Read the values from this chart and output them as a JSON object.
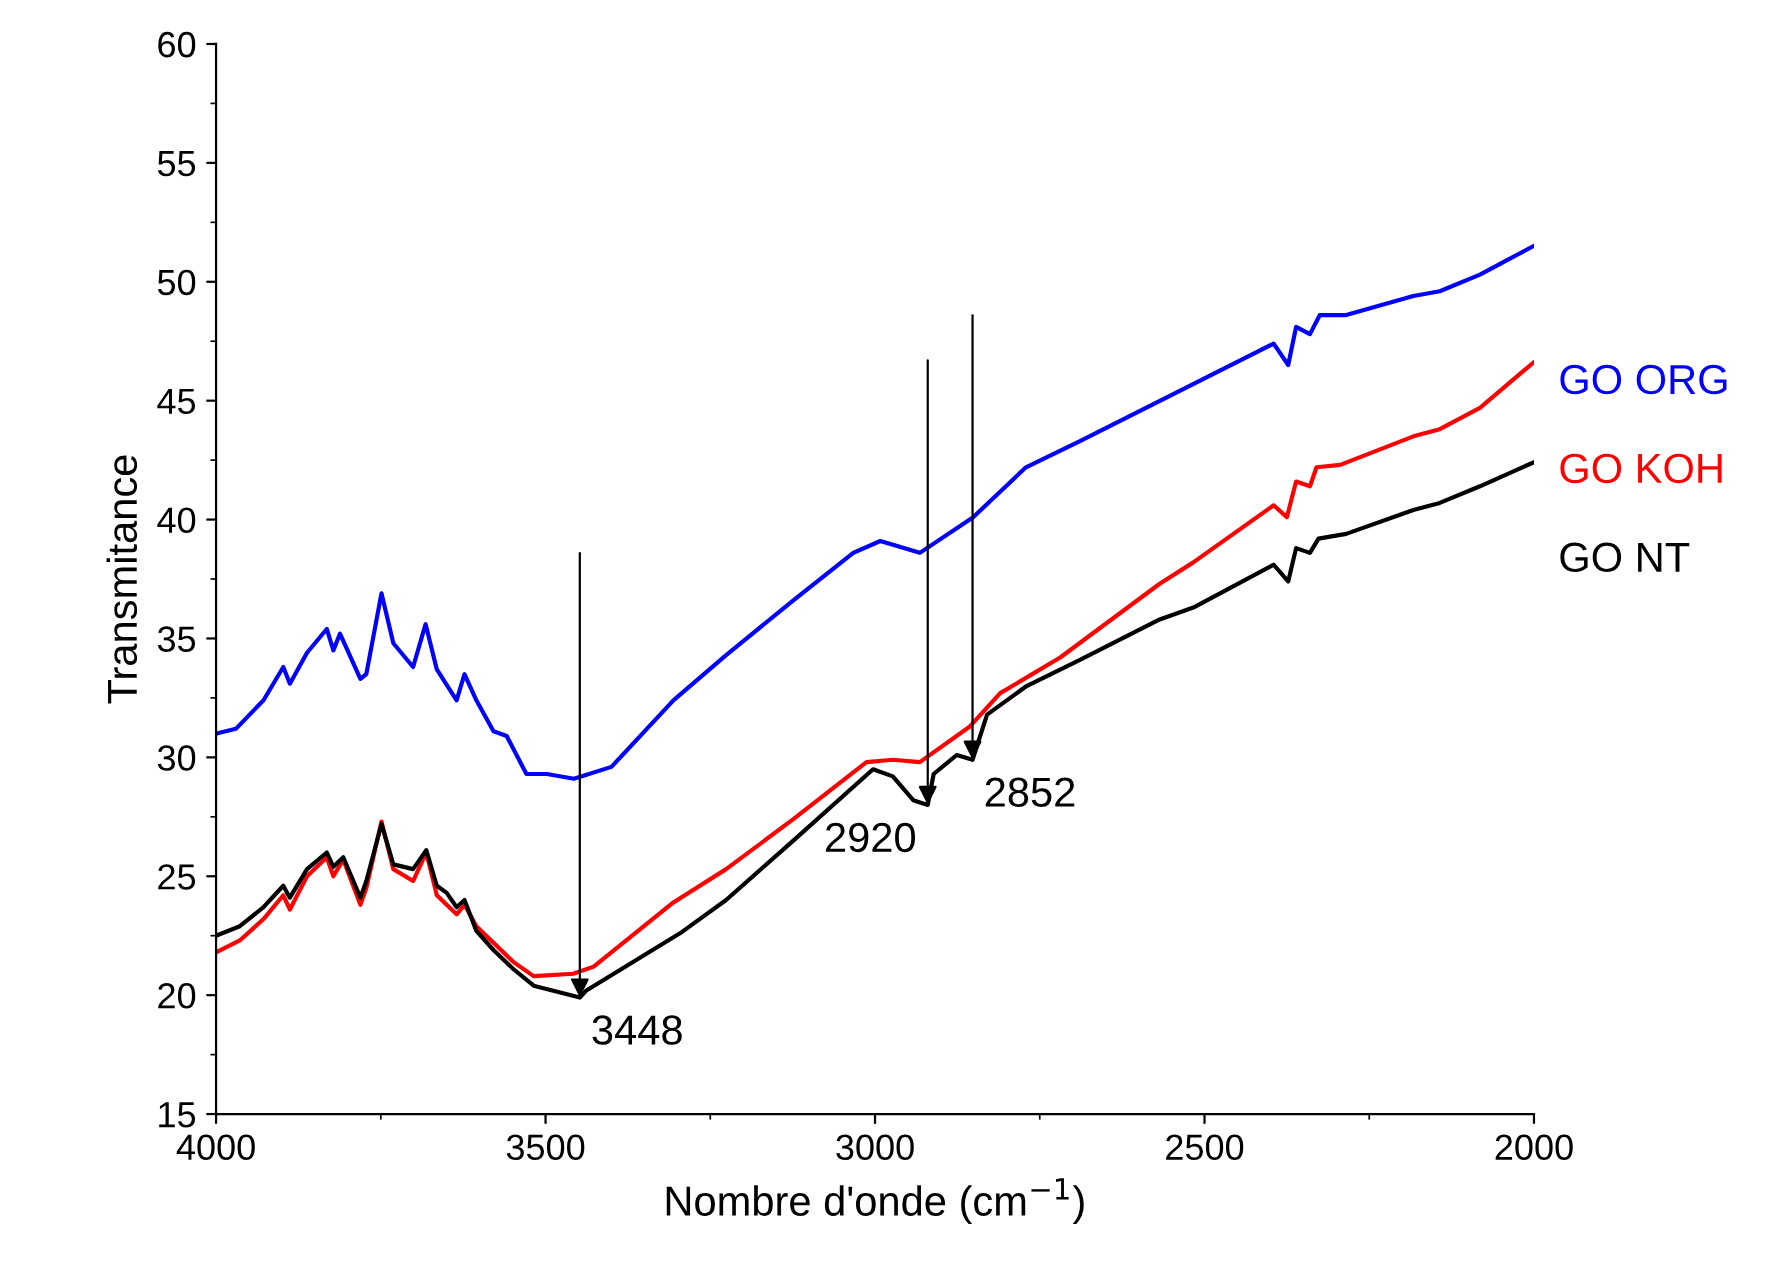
{
  "chart_data": {
    "type": "line",
    "xlabel": "Nombre d'onde (cm$^{−1}$)",
    "ylabel": "Transmitance",
    "xlim": [
      4000,
      2000
    ],
    "xticks": [
      4000,
      3500,
      3000,
      2500,
      2000
    ],
    "ylim": [
      15,
      60
    ],
    "yticks": [
      15,
      20,
      25,
      30,
      35,
      40,
      45,
      50,
      55,
      60
    ],
    "legend": "right",
    "grid": false,
    "series": [
      {
        "name": "GO ORG",
        "color": "#0000ff",
        "x": [
          4000,
          3970,
          3928,
          3898,
          3888,
          3862,
          3832,
          3822,
          3812,
          3781,
          3772,
          3749,
          3731,
          3701,
          3682,
          3665,
          3635,
          3623,
          3605,
          3579,
          3559,
          3529,
          3498,
          3457,
          3400,
          3306,
          3226,
          3124,
          3033,
          2992,
          2932,
          2851,
          2771,
          2689,
          2567,
          2395,
          2373,
          2361,
          2340,
          2325,
          2285,
          2183,
          2143,
          2082,
          2001
        ],
        "values": [
          31.0,
          31.2,
          32.4,
          33.8,
          33.1,
          34.4,
          35.4,
          34.5,
          35.2,
          33.3,
          33.5,
          36.9,
          34.8,
          33.8,
          35.6,
          33.7,
          32.4,
          33.5,
          32.4,
          31.1,
          30.9,
          29.3,
          29.3,
          29.1,
          29.6,
          32.4,
          34.3,
          36.6,
          38.6,
          39.1,
          38.6,
          40.1,
          42.2,
          43.3,
          45.0,
          47.4,
          46.5,
          48.1,
          47.8,
          48.6,
          48.6,
          49.4,
          49.6,
          50.3,
          51.5
        ]
      },
      {
        "name": "GO KOH",
        "color": "#ff0000",
        "x": [
          4000,
          3964,
          3928,
          3898,
          3888,
          3862,
          3832,
          3822,
          3807,
          3781,
          3772,
          3749,
          3731,
          3701,
          3681,
          3665,
          3650,
          3635,
          3623,
          3605,
          3579,
          3549,
          3518,
          3458,
          3427,
          3306,
          3226,
          3124,
          3013,
          2973,
          2932,
          2856,
          2810,
          2719,
          2568,
          2517,
          2395,
          2375,
          2361,
          2340,
          2330,
          2294,
          2183,
          2143,
          2082,
          2001
        ],
        "values": [
          21.8,
          22.3,
          23.2,
          24.2,
          23.6,
          25.0,
          25.8,
          25.0,
          25.7,
          23.8,
          24.5,
          27.3,
          25.3,
          24.8,
          26.0,
          24.2,
          23.8,
          23.4,
          23.8,
          22.9,
          22.2,
          21.4,
          20.8,
          20.9,
          21.2,
          23.9,
          25.3,
          27.4,
          29.8,
          29.9,
          29.8,
          31.3,
          32.7,
          34.2,
          37.3,
          38.2,
          40.6,
          40.1,
          41.6,
          41.4,
          42.2,
          42.3,
          43.5,
          43.8,
          44.7,
          46.6
        ]
      },
      {
        "name": "GO NT",
        "color": "#000000",
        "x": [
          4000,
          3964,
          3928,
          3898,
          3888,
          3862,
          3832,
          3822,
          3807,
          3781,
          3772,
          3749,
          3731,
          3701,
          3681,
          3665,
          3650,
          3635,
          3623,
          3605,
          3579,
          3549,
          3518,
          3448,
          3438,
          3296,
          3226,
          3124,
          3003,
          2973,
          2942,
          2920,
          2911,
          2876,
          2852,
          2830,
          2770,
          2689,
          2568,
          2517,
          2395,
          2373,
          2361,
          2340,
          2327,
          2285,
          2183,
          2143,
          2082,
          2001
        ],
        "values": [
          22.5,
          22.9,
          23.7,
          24.6,
          24.1,
          25.3,
          26.0,
          25.4,
          25.8,
          24.1,
          24.8,
          27.2,
          25.5,
          25.3,
          26.1,
          24.6,
          24.3,
          23.7,
          24.0,
          22.7,
          21.9,
          21.1,
          20.4,
          19.9,
          20.2,
          22.6,
          24.0,
          26.5,
          29.5,
          29.2,
          28.2,
          28.0,
          29.3,
          30.1,
          29.9,
          31.8,
          33.0,
          34.1,
          35.8,
          36.3,
          38.1,
          37.4,
          38.8,
          38.6,
          39.2,
          39.4,
          40.4,
          40.7,
          41.4,
          42.4
        ]
      }
    ],
    "annotations": [
      {
        "text": "3448",
        "x": 3448,
        "y": 19.9
      },
      {
        "text": "2920",
        "x": 2920,
        "y": 28.0
      },
      {
        "text": "2852",
        "x": 2852,
        "y": 29.9
      }
    ]
  }
}
